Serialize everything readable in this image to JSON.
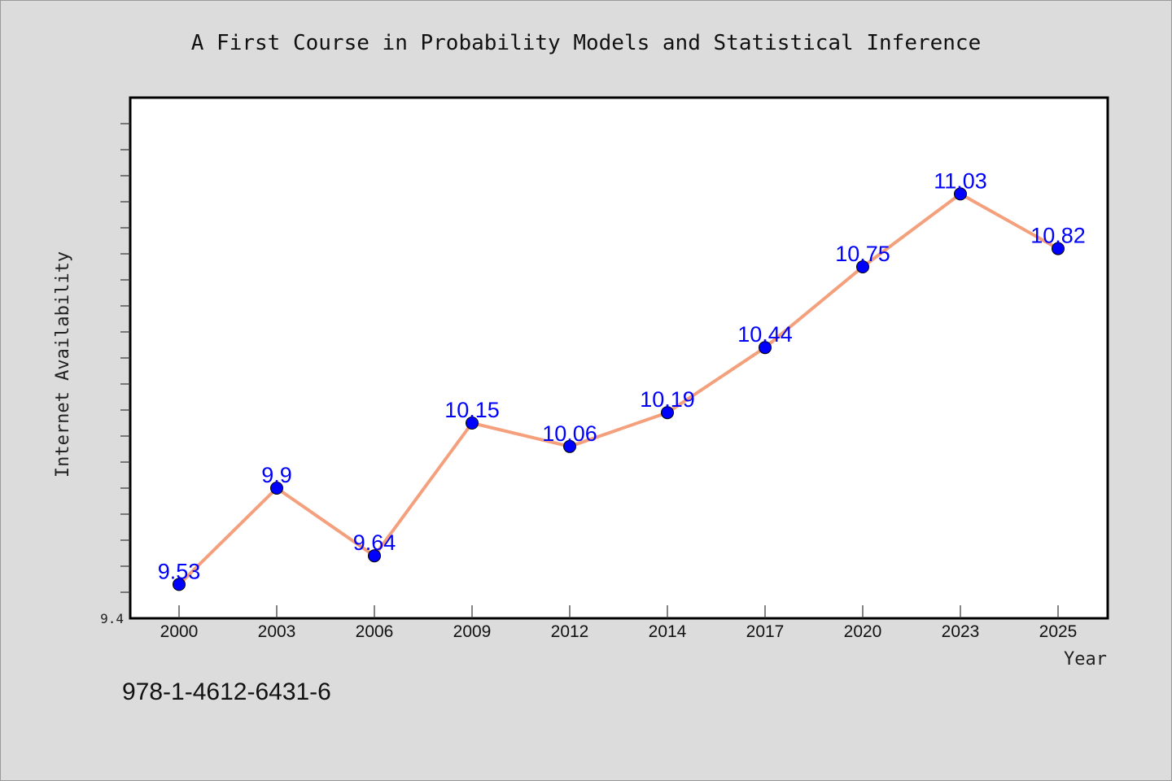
{
  "chart_data": {
    "type": "line",
    "title": "A First Course in Probability Models and Statistical Inference",
    "xlabel": "Year",
    "ylabel": "Internet Availability",
    "categories": [
      "2000",
      "2003",
      "2006",
      "2009",
      "2012",
      "2014",
      "2017",
      "2020",
      "2023",
      "2025"
    ],
    "series": [
      {
        "values": [
          9.53,
          9.9,
          9.64,
          10.15,
          10.06,
          10.19,
          10.44,
          10.75,
          11.03,
          10.82
        ],
        "labels": [
          "9.53",
          "9.9",
          "9.64",
          "10.15",
          "10.06",
          "10.19",
          "10.44",
          "10.75",
          "11.03",
          "10.82"
        ],
        "line_color": "#f4a07c",
        "marker_color": "#0000ff"
      }
    ],
    "ylim": [
      9.4,
      11.4
    ],
    "ytick_labels": [
      "9.4"
    ],
    "grid": false,
    "legend": "none"
  },
  "footer_text": "978-1-4612-6431-6",
  "colors": {
    "background": "#dcdcdc",
    "plot_background": "#ffffff",
    "line": "#f4a07c",
    "marker": "#0000ff",
    "data_label": "#0000ff"
  }
}
